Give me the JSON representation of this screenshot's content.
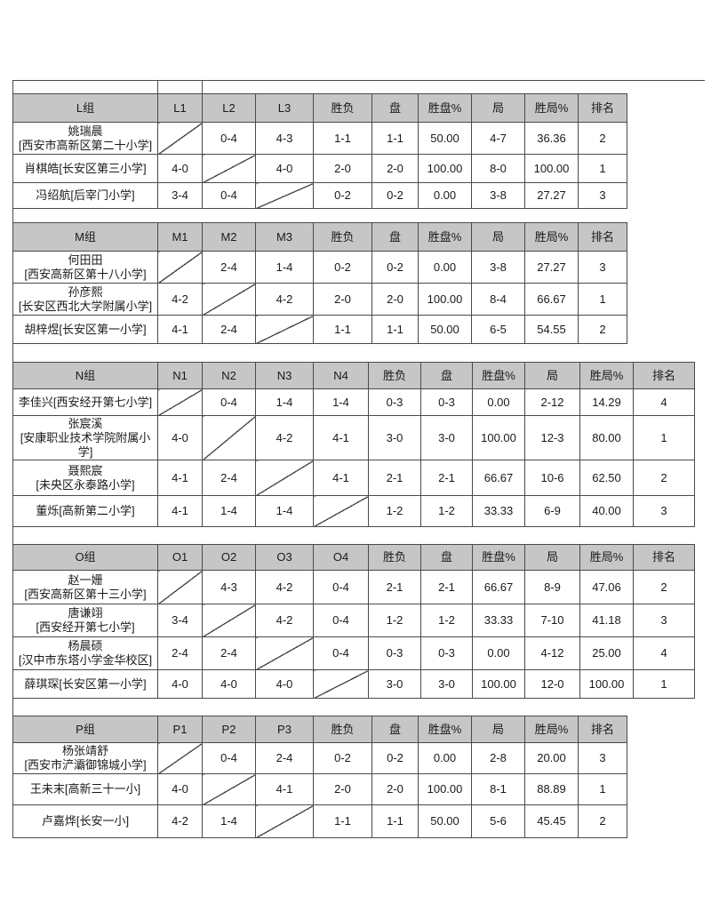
{
  "stat_headers": [
    "胜负",
    "盘",
    "胜盘%",
    "局",
    "胜局%",
    "排名"
  ],
  "tables": [
    {
      "group": "L组",
      "match_headers": [
        "L1",
        "L2",
        "L3"
      ],
      "rows": [
        {
          "name": "姚瑞晨",
          "school": "[西安市高新区第二十小学]",
          "school_newline": true,
          "results": [
            "",
            "0-4",
            "4-3"
          ],
          "stats": [
            "1-1",
            "1-1",
            "50.00",
            "4-7",
            "36.36",
            "2"
          ]
        },
        {
          "name": "肖棋皓",
          "school": "[长安区第三小学]",
          "school_newline": false,
          "results": [
            "4-0",
            "",
            "4-0"
          ],
          "stats": [
            "2-0",
            "2-0",
            "100.00",
            "8-0",
            "100.00",
            "1"
          ]
        },
        {
          "name": "冯绍航",
          "school": "[后宰门小学]",
          "school_newline": false,
          "results": [
            "3-4",
            "0-4",
            ""
          ],
          "stats": [
            "0-2",
            "0-2",
            "0.00",
            "3-8",
            "27.27",
            "3"
          ]
        }
      ]
    },
    {
      "group": "M组",
      "match_headers": [
        "M1",
        "M2",
        "M3"
      ],
      "rows": [
        {
          "name": "何田田",
          "school": "[西安高新区第十八小学]",
          "school_newline": true,
          "results": [
            "",
            "2-4",
            "1-4"
          ],
          "stats": [
            "0-2",
            "0-2",
            "0.00",
            "3-8",
            "27.27",
            "3"
          ]
        },
        {
          "name": "孙彦熙",
          "school": "[长安区西北大学附属小学]",
          "school_newline": true,
          "results": [
            "4-2",
            "",
            "4-2"
          ],
          "stats": [
            "2-0",
            "2-0",
            "100.00",
            "8-4",
            "66.67",
            "1"
          ]
        },
        {
          "name": "胡梓煜",
          "school": "[长安区第一小学]",
          "school_newline": false,
          "results": [
            "4-1",
            "2-4",
            ""
          ],
          "stats": [
            "1-1",
            "1-1",
            "50.00",
            "6-5",
            "54.55",
            "2"
          ]
        }
      ]
    },
    {
      "group": "N组",
      "match_headers": [
        "N1",
        "N2",
        "N3",
        "N4"
      ],
      "rows": [
        {
          "name": "李佳兴",
          "school": "[西安经开第七小学]",
          "school_newline": false,
          "results": [
            "",
            "0-4",
            "1-4",
            "1-4"
          ],
          "stats": [
            "0-3",
            "0-3",
            "0.00",
            "2-12",
            "14.29",
            "4"
          ]
        },
        {
          "name": "张宸溪",
          "school": "[安康职业技术学院附属小学]",
          "school_newline": true,
          "results": [
            "4-0",
            "",
            "4-2",
            "4-1"
          ],
          "stats": [
            "3-0",
            "3-0",
            "100.00",
            "12-3",
            "80.00",
            "1"
          ]
        },
        {
          "name": "聂熙宸",
          "school": "[未央区永泰路小学]",
          "school_newline": true,
          "results": [
            "4-1",
            "2-4",
            "",
            "4-1"
          ],
          "stats": [
            "2-1",
            "2-1",
            "66.67",
            "10-6",
            "62.50",
            "2"
          ]
        },
        {
          "name": "董烁",
          "school": "[高新第二小学]",
          "school_newline": false,
          "results": [
            "4-1",
            "1-4",
            "1-4",
            ""
          ],
          "stats": [
            "1-2",
            "1-2",
            "33.33",
            "6-9",
            "40.00",
            "3"
          ]
        }
      ]
    },
    {
      "group": "O组",
      "match_headers": [
        "O1",
        "O2",
        "O3",
        "O4"
      ],
      "rows": [
        {
          "name": "赵一姗",
          "school": "[西安高新区第十三小学]",
          "school_newline": true,
          "results": [
            "",
            "4-3",
            "4-2",
            "0-4"
          ],
          "stats": [
            "2-1",
            "2-1",
            "66.67",
            "8-9",
            "47.06",
            "2"
          ]
        },
        {
          "name": "唐谦翊",
          "school": "[西安经开第七小学]",
          "school_newline": true,
          "results": [
            "3-4",
            "",
            "4-2",
            "0-4"
          ],
          "stats": [
            "1-2",
            "1-2",
            "33.33",
            "7-10",
            "41.18",
            "3"
          ]
        },
        {
          "name": "杨晨硕",
          "school": "[汉中市东塔小学金华校区]",
          "school_newline": true,
          "results": [
            "2-4",
            "2-4",
            "",
            "0-4"
          ],
          "stats": [
            "0-3",
            "0-3",
            "0.00",
            "4-12",
            "25.00",
            "4"
          ]
        },
        {
          "name": "薛琪琛",
          "school": "[长安区第一小学]",
          "school_newline": false,
          "results": [
            "4-0",
            "4-0",
            "4-0",
            ""
          ],
          "stats": [
            "3-0",
            "3-0",
            "100.00",
            "12-0",
            "100.00",
            "1"
          ]
        }
      ]
    },
    {
      "group": "P组",
      "match_headers": [
        "P1",
        "P2",
        "P3"
      ],
      "rows": [
        {
          "name": "杨张靖舒",
          "school": "[西安市浐灞御锦城小学]",
          "school_newline": true,
          "results": [
            "",
            "0-4",
            "2-4"
          ],
          "stats": [
            "0-2",
            "0-2",
            "0.00",
            "2-8",
            "20.00",
            "3"
          ]
        },
        {
          "name": "王未末",
          "school": "[高新三十一小]",
          "school_newline": false,
          "results": [
            "4-0",
            "",
            "4-1"
          ],
          "stats": [
            "2-0",
            "2-0",
            "100.00",
            "8-1",
            "88.89",
            "1"
          ]
        },
        {
          "name": "卢嘉烨",
          "school": "[长安一小]",
          "school_newline": false,
          "results": [
            "4-2",
            "1-4",
            ""
          ],
          "stats": [
            "1-1",
            "1-1",
            "50.00",
            "5-6",
            "45.45",
            "2"
          ]
        }
      ]
    }
  ]
}
